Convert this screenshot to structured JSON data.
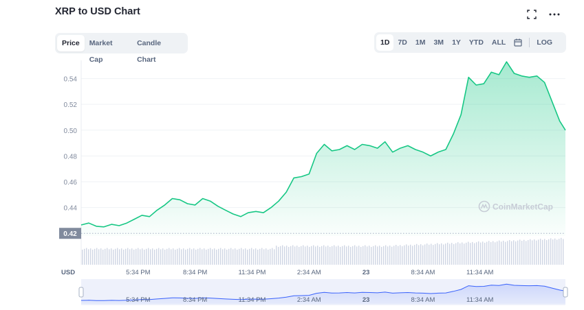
{
  "header": {
    "title": "XRP to USD Chart"
  },
  "chart_tabs": [
    {
      "label": "Price",
      "active": true
    },
    {
      "label": "Market Cap",
      "active": false
    },
    {
      "label": "Candle Chart",
      "active": false
    }
  ],
  "ranges": [
    {
      "label": "1D",
      "active": true
    },
    {
      "label": "7D",
      "active": false
    },
    {
      "label": "1M",
      "active": false
    },
    {
      "label": "3M",
      "active": false
    },
    {
      "label": "1Y",
      "active": false
    },
    {
      "label": "YTD",
      "active": false
    },
    {
      "label": "ALL",
      "active": false
    }
  ],
  "log_label": "LOG",
  "watermark": "CoinMarketCap",
  "currency_label": "USD",
  "colors": {
    "line": "#16c784",
    "fill_top": "#16c784",
    "grid": "#eff2f5",
    "axis_text": "#808a9d",
    "badge_bg": "#808a9d",
    "volume": "#cfd6e4",
    "navigator_line": "#3861fb"
  },
  "icons": {
    "fullscreen": "fullscreen-icon",
    "more": "more-icon",
    "calendar": "calendar-icon"
  },
  "chart_data": {
    "type": "area",
    "y_ticks": [
      0.44,
      0.46,
      0.48,
      0.5,
      0.52,
      0.54
    ],
    "y_tick_labels": [
      "0.44",
      "0.46",
      "0.48",
      "0.50",
      "0.52",
      "0.54"
    ],
    "ylim": [
      0.418,
      0.552
    ],
    "xlim": [
      0,
      25.5
    ],
    "x_ticks": [
      3,
      6,
      9,
      12,
      15,
      18,
      21
    ],
    "x_tick_labels": [
      "5:34 PM",
      "8:34 PM",
      "11:34 PM",
      "2:34 AM",
      "23",
      "8:34 AM",
      "11:34 AM"
    ],
    "start_value_badge": "0.42",
    "grid": true,
    "x": [
      0,
      0.4,
      0.8,
      1.2,
      1.6,
      2.0,
      2.4,
      2.8,
      3.2,
      3.6,
      4.0,
      4.4,
      4.8,
      5.2,
      5.6,
      6.0,
      6.4,
      6.8,
      7.2,
      7.6,
      8.0,
      8.4,
      8.8,
      9.2,
      9.6,
      10.0,
      10.4,
      10.8,
      11.2,
      11.6,
      12.0,
      12.4,
      12.8,
      13.2,
      13.6,
      14.0,
      14.4,
      14.8,
      15.2,
      15.6,
      16.0,
      16.4,
      16.8,
      17.2,
      17.6,
      18.0,
      18.4,
      18.8,
      19.2,
      19.6,
      20.0,
      20.4,
      20.8,
      21.2,
      21.6,
      22.0,
      22.4,
      22.8,
      23.2,
      23.6,
      24.0,
      24.4,
      24.8,
      25.2,
      25.5
    ],
    "y": [
      0.4265,
      0.428,
      0.4255,
      0.425,
      0.427,
      0.426,
      0.428,
      0.431,
      0.434,
      0.433,
      0.438,
      0.442,
      0.447,
      0.446,
      0.443,
      0.442,
      0.447,
      0.445,
      0.441,
      0.438,
      0.435,
      0.433,
      0.436,
      0.437,
      0.436,
      0.44,
      0.445,
      0.452,
      0.463,
      0.464,
      0.466,
      0.482,
      0.489,
      0.484,
      0.485,
      0.488,
      0.485,
      0.489,
      0.488,
      0.486,
      0.491,
      0.483,
      0.486,
      0.488,
      0.485,
      0.483,
      0.48,
      0.483,
      0.485,
      0.497,
      0.512,
      0.541,
      0.535,
      0.536,
      0.545,
      0.543,
      0.553,
      0.544,
      0.542,
      0.541,
      0.542,
      0.537,
      0.522,
      0.507,
      0.5
    ]
  }
}
